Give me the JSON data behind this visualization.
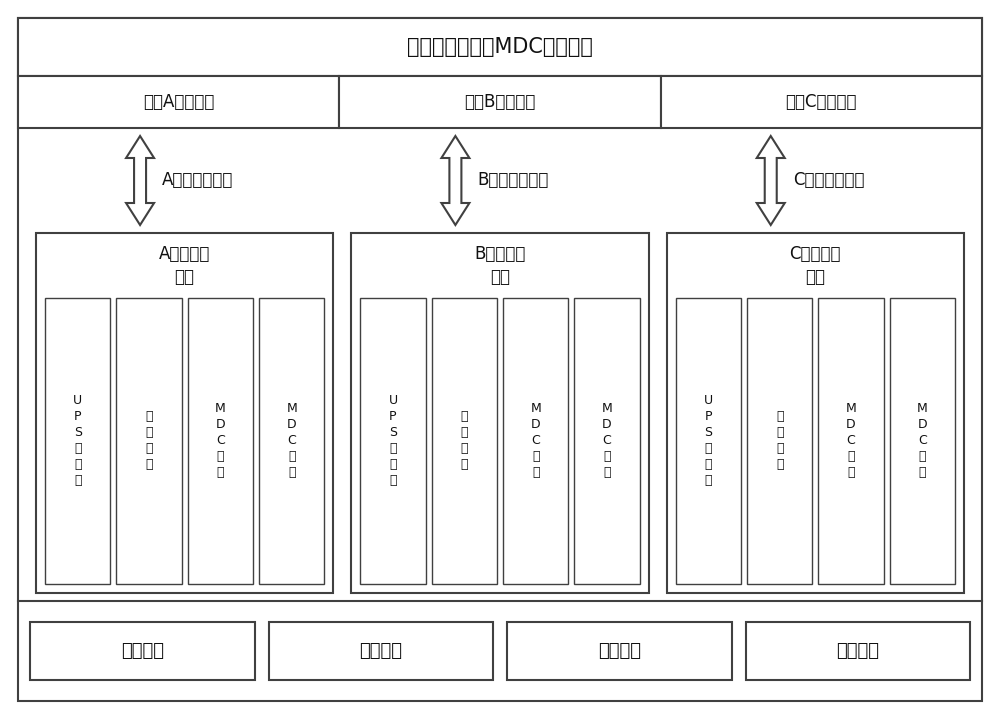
{
  "bg_color": "#ffffff",
  "border_color": "#404040",
  "title_top": "模块化数据中心MDC管理平台",
  "protocol_labels": [
    "厂家A协议解析",
    "厂家B协议解析",
    "厂家C协议解析"
  ],
  "north_labels": [
    "A厂家北向接口",
    "B厂家北向接口",
    "C厂家北向接口"
  ],
  "monitor_titles": [
    "A厂家监控\n系统",
    "B厂家监控\n系统",
    "C厂家监控\n系统"
  ],
  "sub_labels_0": [
    "U\nP\nS\n及\n配\n电",
    "精\n密\n空\n调",
    "M\nD\nC\n环\n境",
    "M\nD\nC\n安\n防"
  ],
  "sub_labels_1": [
    "U\nP\nS\n及\n配\n电",
    "精\n密\n空\n调",
    "M\nD\nC\n环\n境",
    "M\nD\nC\n安\n防"
  ],
  "sub_labels_2": [
    "U\nP\nS\n及\n配\n电",
    "精\n密\n空\n调",
    "M\nD\nC\n环\n境",
    "M\nD\nC\n安\n防"
  ],
  "bottom_labels": [
    "接口适配",
    "协议适配",
    "协议调试",
    "设备管理"
  ],
  "font_size_title": 15,
  "font_size_proto": 12,
  "font_size_north": 12,
  "font_size_mon_title": 12,
  "font_size_sub": 9,
  "font_size_bottom": 13
}
